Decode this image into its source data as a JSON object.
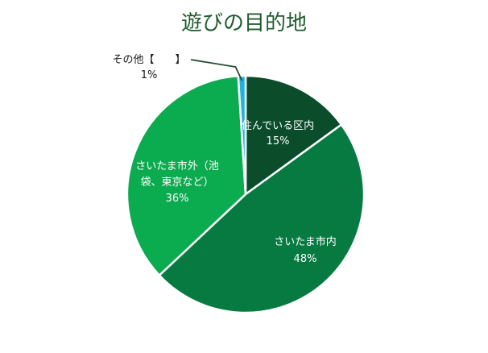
{
  "chart_data": {
    "type": "pie",
    "title": "遊びの目的地",
    "start_angle_deg": 0,
    "direction": "clockwise",
    "slices": [
      {
        "label_lines": [
          "住んでいる区内"
        ],
        "value": 15,
        "percent_label": "15%",
        "color": "#0b4d2b",
        "text_color": "#ffffff"
      },
      {
        "label_lines": [
          "さいたま市内"
        ],
        "value": 48,
        "percent_label": "48%",
        "color": "#077a41",
        "text_color": "#ffffff"
      },
      {
        "label_lines": [
          "さいたま市外（池",
          "袋、東京など）"
        ],
        "value": 36,
        "percent_label": "36%",
        "color": "#0bab4f",
        "text_color": "#ffffff"
      },
      {
        "label_lines": [
          "その他【　　】"
        ],
        "value": 1,
        "percent_label": "1%",
        "color": "#20b3df",
        "text_color": "#1a1a1a",
        "external": true
      }
    ]
  }
}
